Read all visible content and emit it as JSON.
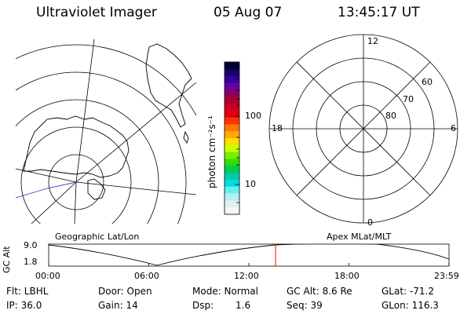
{
  "header": {
    "instrument": "Ultraviolet Imager",
    "date": "05 Aug 07",
    "time": "13:45:17 UT"
  },
  "colorbar": {
    "unit_label": "photon cm⁻²s⁻¹",
    "tick_100": "100",
    "tick_10": "10",
    "colors": [
      "#000033",
      "#1a0066",
      "#330099",
      "#6600aa",
      "#8a0060",
      "#aa0033",
      "#cc0020",
      "#e00010",
      "#ff3300",
      "#ff7700",
      "#ffaa00",
      "#ffdd00",
      "#ccff00",
      "#77ee00",
      "#33dd00",
      "#00cc55",
      "#00ccaa",
      "#00dddd",
      "#66eeee",
      "#bbeeee",
      "#e0eeee",
      "#f6f6f6"
    ]
  },
  "geo_map": {
    "label": "Geographic Lat/Lon"
  },
  "polar_plot": {
    "label": "Apex MLat/MLT",
    "mlt_top": "12",
    "mlt_left": "18",
    "mlt_right": "6",
    "mlt_bottom": "0",
    "lat_60": "60",
    "lat_70": "70",
    "lat_80": "80"
  },
  "altitude_plot": {
    "ylabel": "GC Alt",
    "y_top": "9.0",
    "y_bottom": "1.8",
    "x_ticks": [
      "00:00",
      "06:00",
      "12:00",
      "18:00",
      "23:59"
    ],
    "marker_color": "#ff0000"
  },
  "footer": {
    "flt": "Flt: LBHL",
    "ip": "IP: 36.0",
    "door": "Door: Open",
    "gain": "Gain: 14",
    "mode": "Mode: Normal",
    "dsp_label": "Dsp:",
    "dsp_value": "1.6",
    "gc_alt": "GC Alt: 8.6 Re",
    "seq": "Seq: 39",
    "glat": "GLat: -71.2",
    "glon": "GLon: 116.3"
  }
}
